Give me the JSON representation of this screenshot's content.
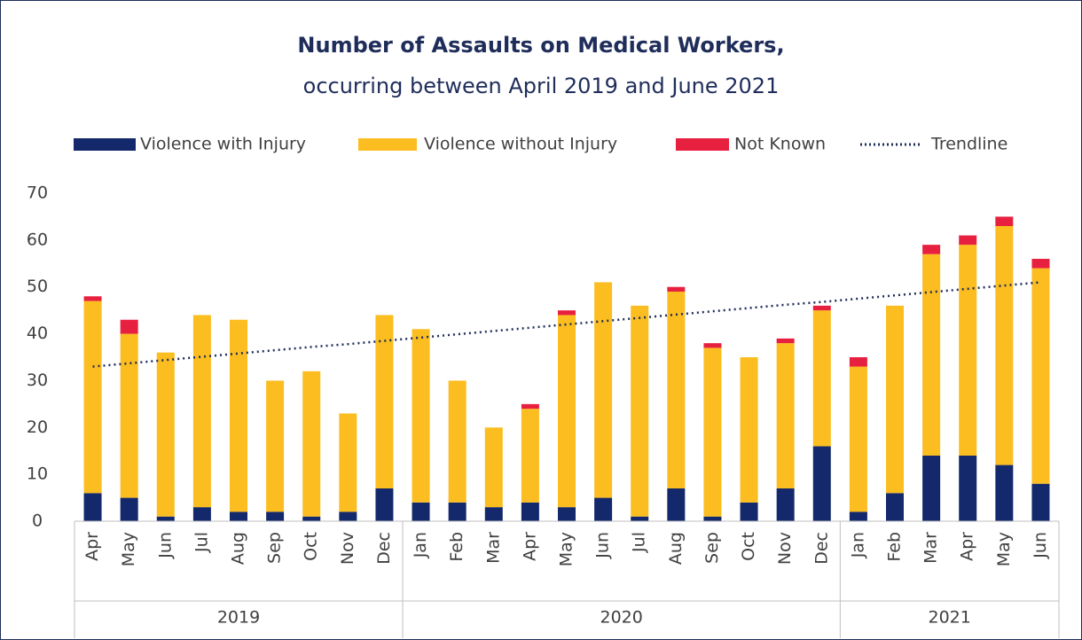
{
  "chart_data": {
    "type": "stacked_bar",
    "title": "Number of Assaults on Medical Workers,",
    "subtitle": "occurring between April 2019 and June 2021",
    "categories": [
      "Apr",
      "May",
      "Jun",
      "Jul",
      "Aug",
      "Sep",
      "Oct",
      "Nov",
      "Dec",
      "Jan",
      "Feb",
      "Mar",
      "Apr",
      "May",
      "Jun",
      "Jul",
      "Aug",
      "Sep",
      "Oct",
      "Nov",
      "Dec",
      "Jan",
      "Feb",
      "Mar",
      "Apr",
      "May",
      "Jun"
    ],
    "groups": [
      "2019",
      "2020",
      "2021"
    ],
    "series": [
      {
        "name": "Violence with Injury",
        "color": "#13296b",
        "values": [
          6,
          5,
          1,
          3,
          2,
          2,
          1,
          2,
          7,
          4,
          4,
          3,
          4,
          3,
          5,
          1,
          7,
          1,
          4,
          7,
          16,
          2,
          6,
          14,
          14,
          12,
          8
        ]
      },
      {
        "name": "Violence without Injury",
        "color": "#fbbd1f",
        "values": [
          41,
          35,
          35,
          41,
          41,
          28,
          31,
          21,
          37,
          37,
          26,
          17,
          20,
          41,
          46,
          45,
          42,
          36,
          31,
          31,
          29,
          31,
          40,
          43,
          45,
          51,
          46
        ]
      },
      {
        "name": "Not Known",
        "color": "#e8203f",
        "values": [
          1,
          3,
          0,
          0,
          0,
          0,
          0,
          0,
          0,
          0,
          0,
          0,
          1,
          1,
          0,
          0,
          1,
          1,
          0,
          1,
          1,
          2,
          0,
          2,
          2,
          2,
          2
        ]
      },
      {
        "name": "Trendline",
        "type": "line",
        "color": "#1f2d5a",
        "values": [
          33.0,
          33.7,
          34.4,
          35.1,
          35.8,
          36.5,
          37.2,
          37.8,
          38.5,
          39.2,
          39.9,
          40.6,
          41.3,
          42.0,
          42.7,
          43.4,
          44.1,
          44.8,
          45.5,
          46.2,
          46.8,
          47.5,
          48.2,
          48.9,
          49.6,
          50.3,
          51.0
        ]
      }
    ],
    "ylim": [
      0,
      70
    ],
    "yticks": [
      0,
      10,
      20,
      30,
      40,
      50,
      60,
      70
    ],
    "grid": false
  }
}
